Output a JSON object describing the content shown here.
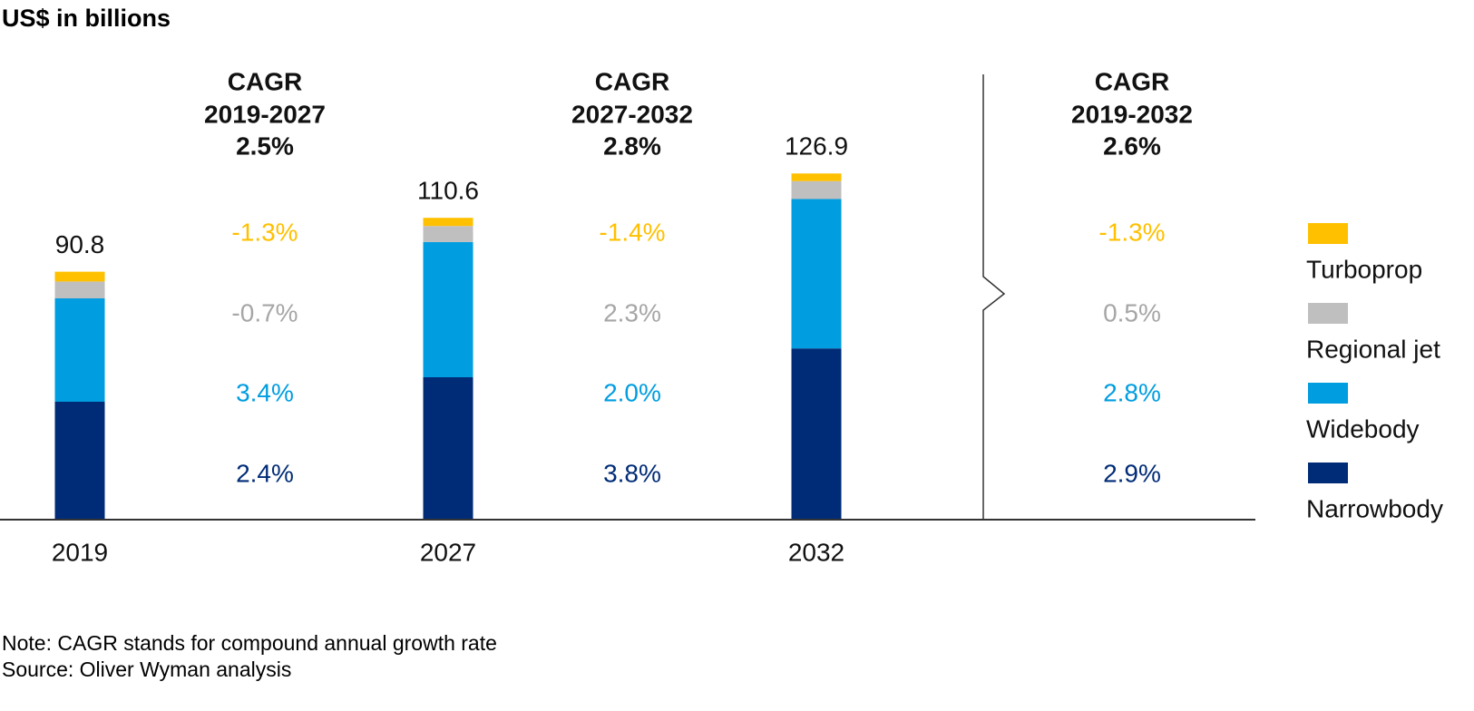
{
  "chart_data": {
    "type": "stacked-bar",
    "title": "US$ in billions",
    "categories": [
      "2019",
      "2027",
      "2032"
    ],
    "series": [
      {
        "name": "Narrowbody",
        "color": "#002c77",
        "values": [
          43.0,
          52.0,
          62.6
        ]
      },
      {
        "name": "Widebody",
        "color": "#009de0",
        "values": [
          38.0,
          49.7,
          54.9
        ]
      },
      {
        "name": "Regional jet",
        "color": "#bfbfbf",
        "values": [
          6.2,
          5.9,
          6.6
        ]
      },
      {
        "name": "Turboprop",
        "color": "#ffc000",
        "values": [
          3.6,
          3.0,
          2.8
        ]
      }
    ],
    "totals": [
      90.8,
      110.6,
      126.9
    ],
    "cagr": [
      {
        "label": "CAGR",
        "period": "2019-2027",
        "total": 2.5,
        "total_label": "2.5%",
        "values": [
          2.4,
          3.4,
          -0.7,
          -1.3
        ],
        "value_labels": [
          "2.4%",
          "3.4%",
          "-0.7%",
          "-1.3%"
        ]
      },
      {
        "label": "CAGR",
        "period": "2027-2032",
        "total": 2.8,
        "total_label": "2.8%",
        "values": [
          3.8,
          2.0,
          2.3,
          -1.4
        ],
        "value_labels": [
          "3.8%",
          "2.0%",
          "2.3%",
          "-1.4%"
        ]
      },
      {
        "label": "CAGR",
        "period": "2019-2032",
        "total": 2.6,
        "total_label": "2.6%",
        "values": [
          2.9,
          2.8,
          0.5,
          -1.3
        ],
        "value_labels": [
          "2.9%",
          "2.8%",
          "0.5%",
          "-1.3%"
        ]
      }
    ],
    "notes": [
      "Note: CAGR stands for compound annual growth rate",
      "Source: Oliver Wyman analysis"
    ]
  }
}
